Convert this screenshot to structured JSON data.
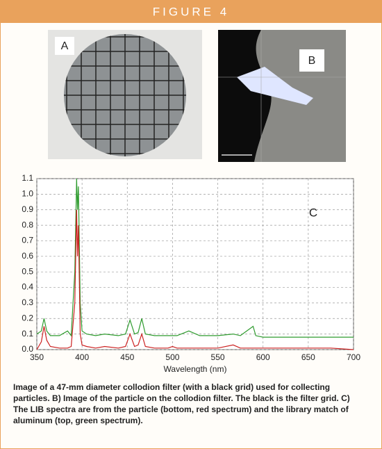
{
  "header": {
    "title": "FIGURE 4"
  },
  "panels": {
    "a": "A",
    "b": "B"
  },
  "caption": "Image of a 47-mm diameter collodion filter (with a black grid) used for collecting particles. B) Image of the particle on the collodion filter. The black is the filter grid. C) The LIB spectra are from the particle (bottom, red spectrum) and the library match of aluminum (top, green spectrum).",
  "chart_data": {
    "type": "line",
    "annotation": "C",
    "x_label": "Wavelength (nm)",
    "x": [
      350,
      355,
      358,
      361,
      365,
      375,
      384,
      388,
      392,
      394,
      395,
      396,
      398,
      400,
      405,
      415,
      425,
      440,
      448,
      453,
      458,
      462,
      466,
      470,
      480,
      495,
      500,
      505,
      518,
      530,
      550,
      567,
      575,
      589,
      592,
      600,
      625,
      650,
      675,
      700
    ],
    "series": [
      {
        "color": "#2e9b2e",
        "values": [
          0.1,
          0.12,
          0.2,
          0.12,
          0.09,
          0.09,
          0.12,
          0.09,
          0.5,
          1.1,
          0.9,
          1.05,
          0.3,
          0.12,
          0.1,
          0.09,
          0.1,
          0.09,
          0.1,
          0.19,
          0.1,
          0.11,
          0.2,
          0.1,
          0.09,
          0.09,
          0.09,
          0.09,
          0.12,
          0.09,
          0.09,
          0.1,
          0.09,
          0.15,
          0.09,
          0.08,
          0.08,
          0.08,
          0.08,
          0.08
        ]
      },
      {
        "color": "#cc2020",
        "values": [
          0.0,
          0.05,
          0.15,
          0.06,
          0.02,
          0.01,
          0.01,
          0.02,
          0.3,
          0.9,
          0.6,
          0.8,
          0.1,
          0.03,
          0.02,
          0.01,
          0.02,
          0.01,
          0.02,
          0.1,
          0.02,
          0.03,
          0.1,
          0.02,
          0.01,
          0.01,
          0.02,
          0.01,
          0.01,
          0.01,
          0.01,
          0.03,
          0.01,
          0.01,
          0.01,
          0.01,
          0.01,
          0.01,
          0.01,
          0.0
        ]
      }
    ],
    "xlim": [
      350,
      700
    ],
    "xticks": [
      350,
      400,
      450,
      500,
      550,
      600,
      650,
      700
    ],
    "ylim": [
      0,
      1.1
    ],
    "yticks": [
      {
        "value": 0,
        "label": "0.0"
      },
      0.1,
      0.2,
      0.3,
      0.4,
      0.5,
      0.6,
      0.7,
      0.8,
      0.9,
      {
        "value": 1,
        "label": "1.0"
      },
      1.1
    ],
    "grid": true
  }
}
